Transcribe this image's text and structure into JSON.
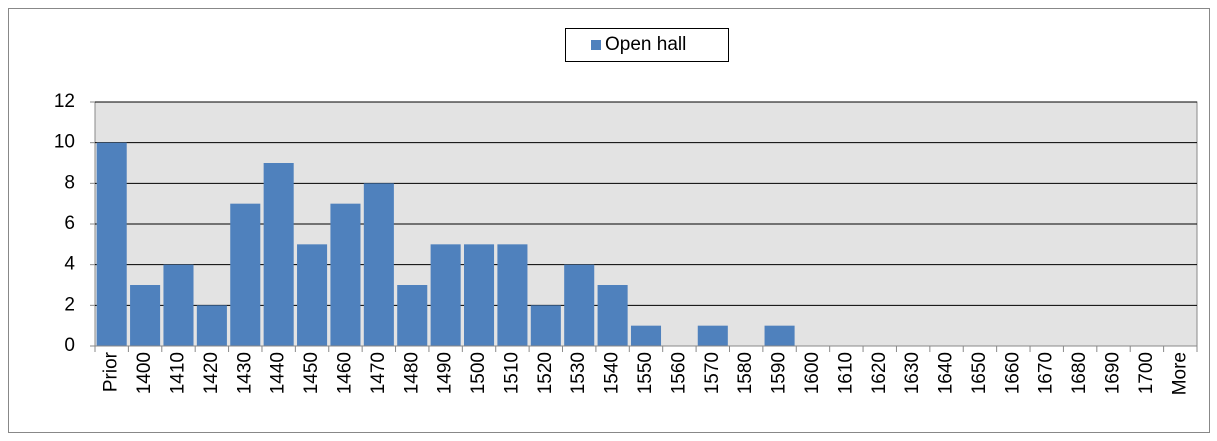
{
  "chart_data": {
    "type": "bar",
    "categories": [
      "Prior",
      "1400",
      "1410",
      "1420",
      "1430",
      "1440",
      "1450",
      "1460",
      "1470",
      "1480",
      "1490",
      "1500",
      "1510",
      "1520",
      "1530",
      "1540",
      "1550",
      "1560",
      "1570",
      "1580",
      "1590",
      "1600",
      "1610",
      "1620",
      "1630",
      "1640",
      "1650",
      "1660",
      "1670",
      "1680",
      "1690",
      "1700",
      "More"
    ],
    "series": [
      {
        "name": "Open hall",
        "color": "#4f81bd",
        "values": [
          10,
          3,
          4,
          2,
          7,
          9,
          5,
          7,
          8,
          3,
          5,
          5,
          5,
          2,
          4,
          3,
          1,
          0,
          1,
          0,
          1,
          0,
          0,
          0,
          0,
          0,
          0,
          0,
          0,
          0,
          0,
          0,
          0
        ]
      }
    ],
    "ylim": [
      0,
      12
    ],
    "yticks": [
      0,
      2,
      4,
      6,
      8,
      10,
      12
    ],
    "grid": true,
    "legend": "top"
  }
}
